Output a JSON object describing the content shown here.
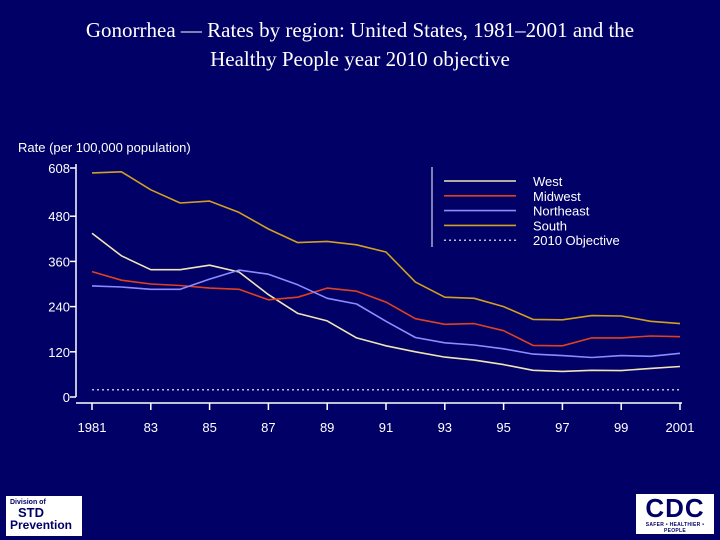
{
  "slide": {
    "title_line1": "Gonorrhea — Rates by region: United States, 1981–2001 and the",
    "title_line2": "Healthy People year 2010 objective"
  },
  "logos": {
    "std_line1": "Division of",
    "std_line2": "STD",
    "std_line3": "Prevention",
    "cdc_main": "CDC",
    "cdc_tagline": "SAFER • HEALTHIER • PEOPLE"
  },
  "chart_data": {
    "type": "line",
    "title": "Gonorrhea — Rates by region: United States, 1981–2001 and the Healthy People year 2010 objective",
    "ylabel": "Rate (per 100,000 population)",
    "xlabel": "",
    "ylim": [
      0,
      608
    ],
    "yticks": [
      0,
      120,
      240,
      360,
      480,
      608
    ],
    "ytick_labels": [
      "0",
      "120",
      "240",
      "360",
      "480",
      "608"
    ],
    "xlim": [
      1981,
      2001
    ],
    "xticks": [
      1981,
      1983,
      1985,
      1987,
      1989,
      1991,
      1993,
      1995,
      1997,
      1999,
      2001
    ],
    "xtick_labels": [
      "1981",
      "83",
      "85",
      "87",
      "89",
      "91",
      "93",
      "95",
      "97",
      "99",
      "2001"
    ],
    "x": [
      1981,
      1982,
      1983,
      1984,
      1985,
      1986,
      1987,
      1988,
      1989,
      1990,
      1991,
      1992,
      1993,
      1994,
      1995,
      1996,
      1997,
      1998,
      1999,
      2000,
      2001
    ],
    "series": [
      {
        "name": "West",
        "color": "#f0e6b4",
        "style": "solid",
        "values": [
          435,
          375,
          338,
          338,
          350,
          332,
          272,
          222,
          202,
          157,
          136,
          120,
          106,
          98,
          86,
          71,
          68,
          71,
          70,
          76,
          81
        ]
      },
      {
        "name": "Midwest",
        "color": "#e0401e",
        "style": "solid",
        "values": [
          333,
          310,
          300,
          296,
          289,
          286,
          258,
          265,
          289,
          281,
          252,
          208,
          193,
          195,
          176,
          137,
          136,
          157,
          157,
          162,
          160
        ]
      },
      {
        "name": "Northeast",
        "color": "#8c8cff",
        "style": "solid",
        "values": [
          295,
          292,
          286,
          286,
          313,
          337,
          326,
          298,
          262,
          247,
          201,
          158,
          144,
          138,
          128,
          114,
          110,
          105,
          110,
          108,
          116
        ]
      },
      {
        "name": "South",
        "color": "#d2a020",
        "style": "solid",
        "values": [
          595,
          598,
          550,
          515,
          520,
          490,
          446,
          410,
          413,
          404,
          385,
          305,
          265,
          262,
          240,
          206,
          205,
          216,
          215,
          201,
          195
        ]
      },
      {
        "name": "2010 Objective",
        "color": "#ffffff",
        "style": "dotted",
        "values": [
          19,
          19,
          19,
          19,
          19,
          19,
          19,
          19,
          19,
          19,
          19,
          19,
          19,
          19,
          19,
          19,
          19,
          19,
          19,
          19,
          19
        ]
      }
    ],
    "grid": false,
    "legend_position": "top-right"
  }
}
